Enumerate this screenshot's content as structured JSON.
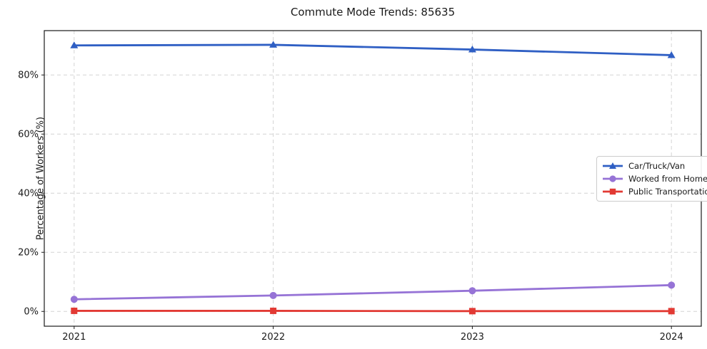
{
  "chart_data": {
    "type": "line",
    "title": "Commute Mode Trends: 85635",
    "xlabel": "",
    "ylabel": "Percentage of Workers (%)",
    "x": [
      2021,
      2022,
      2023,
      2024
    ],
    "x_tick_labels": [
      "2021",
      "2022",
      "2023",
      "2024"
    ],
    "y_ticks": [
      0,
      20,
      40,
      60,
      80
    ],
    "y_tick_labels": [
      "0%",
      "20%",
      "40%",
      "60%",
      "80%"
    ],
    "xlim": [
      2020.85,
      2024.15
    ],
    "ylim": [
      -5,
      95
    ],
    "grid": true,
    "grid_style": "dashed",
    "legend_position": "center-right",
    "series": [
      {
        "name": "Car/Truck/Van",
        "color": "#2f5fc4",
        "marker": "triangle",
        "values": [
          90.0,
          90.2,
          88.6,
          86.7
        ]
      },
      {
        "name": "Worked from Home",
        "color": "#9673d6",
        "marker": "circle",
        "values": [
          4.1,
          5.4,
          7.0,
          8.9
        ]
      },
      {
        "name": "Public Transportation",
        "color": "#e23a34",
        "marker": "square",
        "values": [
          0.2,
          0.2,
          0.1,
          0.1
        ]
      }
    ]
  },
  "colors": {
    "background": "#ffffff",
    "grid": "#d4d4d4",
    "spine": "#1a1a1a",
    "tick_text": "#1a1a1a"
  }
}
